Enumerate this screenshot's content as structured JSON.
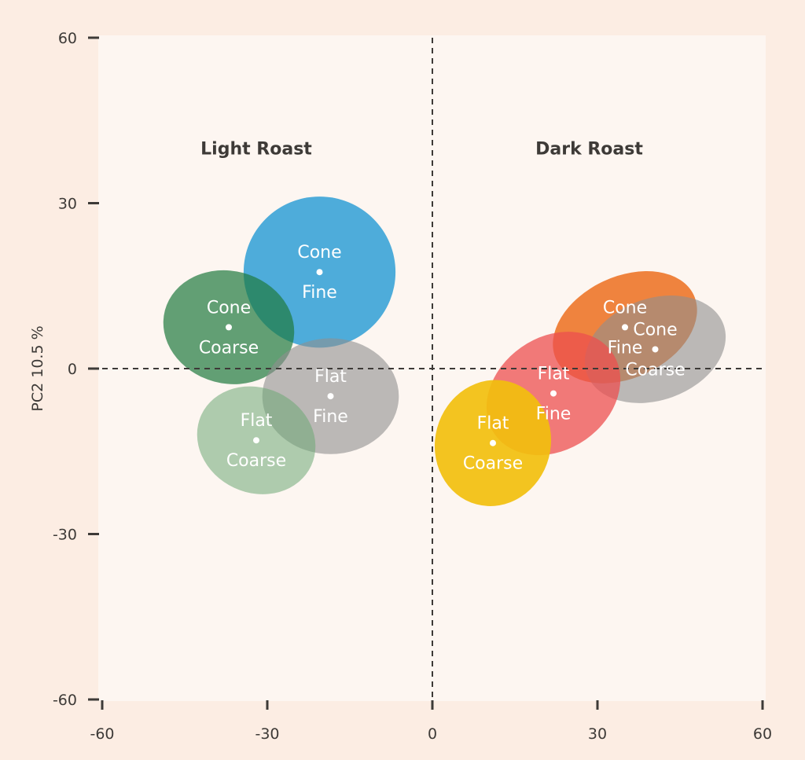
{
  "chart_data": {
    "type": "scatter",
    "xlim": [
      -60,
      60
    ],
    "ylim": [
      -60,
      60
    ],
    "x_ticks": [
      "-60",
      "-30",
      "0",
      "30",
      "60"
    ],
    "y_ticks": [
      "60",
      "30",
      "0",
      "-30",
      "-60"
    ],
    "ylabel": "PC2 10.5 %",
    "xlabel": "",
    "grid": false,
    "reference_lines": {
      "x": 0,
      "y": 0,
      "style": "dashed"
    },
    "group_titles": [
      {
        "text": "Light Roast",
        "x": -32,
        "y": 40
      },
      {
        "text": "Dark Roast",
        "x": 28.5,
        "y": 40
      }
    ],
    "series": [
      {
        "group": "Light Roast",
        "line1": "Cone",
        "line2": "Fine",
        "x": -20.5,
        "y": 17.5,
        "color": "#2f9fd6",
        "opacity": 0.85,
        "rx": 13.8,
        "ry": 13.7,
        "angle": 0
      },
      {
        "group": "Light Roast",
        "line1": "Cone",
        "line2": "Coarse",
        "x": -37,
        "y": 7.5,
        "color": "#1f7a3e",
        "opacity": 0.7,
        "rx": 12,
        "ry": 10.2,
        "angle": 15
      },
      {
        "group": "Light Roast",
        "line1": "Flat",
        "line2": "Fine",
        "x": -18.5,
        "y": -5,
        "color": "#8f8f8f",
        "opacity": 0.6,
        "rx": 12.4,
        "ry": 10.5,
        "angle": 0
      },
      {
        "group": "Light Roast",
        "line1": "Flat",
        "line2": "Coarse",
        "x": -32,
        "y": -13,
        "color": "#6da875",
        "opacity": 0.55,
        "rx": 11,
        "ry": 9.5,
        "angle": 25
      },
      {
        "group": "Dark Roast",
        "line1": "Cone",
        "line2": "Fine",
        "x": 35,
        "y": 7.5,
        "color": "#ec6e1e",
        "opacity": 0.85,
        "rx": 13.8,
        "ry": 9.2,
        "angle": -25
      },
      {
        "group": "Dark Roast",
        "line1": "Cone",
        "line2": "Coarse",
        "x": 40.5,
        "y": 3.5,
        "color": "#8f8f8f",
        "opacity": 0.6,
        "rx": 13.2,
        "ry": 9.2,
        "angle": -20
      },
      {
        "group": "Dark Roast",
        "line1": "Flat",
        "line2": "Fine",
        "x": 22,
        "y": -4.5,
        "color": "#ec4f4f",
        "opacity": 0.75,
        "rx": 13,
        "ry": 10.2,
        "angle": -35
      },
      {
        "group": "Dark Roast",
        "line1": "Flat",
        "line2": "Coarse",
        "x": 11,
        "y": -13.5,
        "color": "#f2bf0e",
        "opacity": 0.92,
        "rx": 10.5,
        "ry": 11.5,
        "angle": 15
      }
    ]
  }
}
